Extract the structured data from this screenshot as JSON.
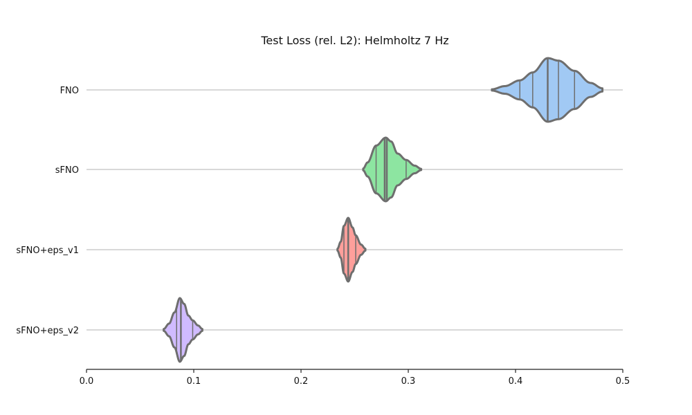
{
  "chart_data": {
    "type": "violin",
    "orientation": "horizontal",
    "title": "Test Loss (rel. L2): Helmholtz 7 Hz",
    "xlabel": "",
    "ylabel": "",
    "xlim": [
      0.0,
      0.5
    ],
    "xticks": [
      0.0,
      0.1,
      0.2,
      0.3,
      0.4,
      0.5
    ],
    "xtick_labels": [
      "0.0",
      "0.1",
      "0.2",
      "0.3",
      "0.4",
      "0.5"
    ],
    "grid": "horizontal lines at category centers",
    "inner": "quartile lines",
    "categories": [
      "FNO",
      "sFNO",
      "sFNO+eps_v1",
      "sFNO+eps_v2"
    ],
    "series": [
      {
        "category": "FNO",
        "color": "#a1c9f4",
        "min": 0.378,
        "max": 0.481,
        "q1": 0.404,
        "median": 0.43,
        "q3": 0.455,
        "density_profile": [
          [
            0.378,
            0.02
          ],
          [
            0.39,
            0.12
          ],
          [
            0.404,
            0.3
          ],
          [
            0.416,
            0.55
          ],
          [
            0.43,
            1.0
          ],
          [
            0.44,
            0.92
          ],
          [
            0.455,
            0.6
          ],
          [
            0.47,
            0.22
          ],
          [
            0.481,
            0.05
          ]
        ],
        "inner_lines": [
          0.404,
          0.416,
          0.43,
          0.44,
          0.455
        ]
      },
      {
        "category": "sFNO",
        "color": "#8de5a1",
        "min": 0.258,
        "max": 0.312,
        "q1": 0.27,
        "median": 0.279,
        "q3": 0.298,
        "density_profile": [
          [
            0.258,
            0.03
          ],
          [
            0.262,
            0.22
          ],
          [
            0.27,
            0.75
          ],
          [
            0.279,
            1.0
          ],
          [
            0.284,
            0.88
          ],
          [
            0.29,
            0.5
          ],
          [
            0.298,
            0.3
          ],
          [
            0.306,
            0.12
          ],
          [
            0.312,
            0.02
          ]
        ],
        "inner_lines": [
          0.27,
          0.278,
          0.28,
          0.298
        ]
      },
      {
        "category": "sFNO+eps_v1",
        "color": "#ff9f9b",
        "min": 0.234,
        "max": 0.26,
        "q1": 0.24,
        "median": 0.244,
        "q3": 0.251,
        "density_profile": [
          [
            0.234,
            0.03
          ],
          [
            0.237,
            0.25
          ],
          [
            0.24,
            0.75
          ],
          [
            0.244,
            1.0
          ],
          [
            0.248,
            0.7
          ],
          [
            0.251,
            0.45
          ],
          [
            0.256,
            0.16
          ],
          [
            0.26,
            0.03
          ]
        ],
        "inner_lines": [
          0.24,
          0.244,
          0.251
        ]
      },
      {
        "category": "sFNO+eps_v2",
        "color": "#d0bbff",
        "min": 0.072,
        "max": 0.108,
        "q1": 0.084,
        "median": 0.088,
        "q3": 0.099,
        "density_profile": [
          [
            0.072,
            0.03
          ],
          [
            0.077,
            0.2
          ],
          [
            0.082,
            0.55
          ],
          [
            0.087,
            1.0
          ],
          [
            0.091,
            0.82
          ],
          [
            0.095,
            0.45
          ],
          [
            0.099,
            0.3
          ],
          [
            0.104,
            0.14
          ],
          [
            0.108,
            0.03
          ]
        ],
        "inner_lines": [
          0.084,
          0.088,
          0.099
        ]
      }
    ]
  }
}
